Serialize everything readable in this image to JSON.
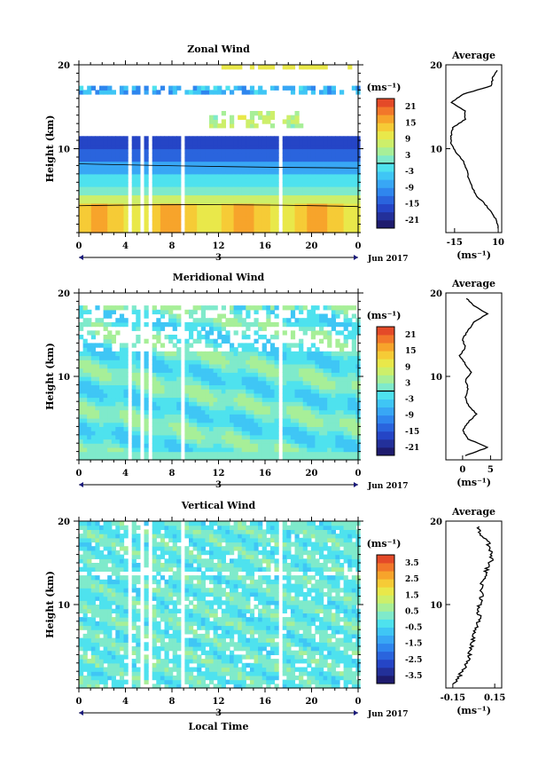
{
  "chart_data": [
    {
      "type": "heatmap",
      "title": "Zonal Wind",
      "ylabel": "Height (km)",
      "ylim": [
        0,
        20
      ],
      "yticks": [
        "20",
        "10"
      ],
      "xlim": [
        0,
        24
      ],
      "xticks": [
        "0",
        "4",
        "8",
        "12",
        "16",
        "20",
        "0"
      ],
      "day_label": "3",
      "month_label": "Jun 2017",
      "colorbar": {
        "unit": "(ms⁻¹)",
        "tick_labels": [
          "21",
          "15",
          "9",
          "3",
          "-3",
          "-9",
          "-15",
          "-21"
        ],
        "tick_values": [
          21,
          15,
          9,
          3,
          -3,
          -9,
          -15,
          -21
        ],
        "range": [
          -24,
          24
        ],
        "zero_line": 0
      },
      "profile": {
        "title": "Average",
        "xlim": [
          -20,
          12
        ],
        "xticks": [
          "-15",
          "10"
        ],
        "xtick_values": [
          -15,
          10
        ],
        "xlabel": "(ms⁻¹)",
        "height": [
          0.5,
          1.5,
          2.5,
          3.5,
          4.5,
          5.5,
          6.5,
          7.5,
          8.5,
          9.5,
          10.5,
          11.5,
          12.5,
          13.5,
          14.5,
          15.5,
          16.5,
          17.5,
          18.5,
          19.5
        ],
        "values": [
          10,
          9,
          6,
          2,
          -3,
          -5,
          -7,
          -8,
          -10,
          -14,
          -17,
          -17,
          -16,
          -9,
          -9,
          -17,
          -10,
          6,
          7,
          10
        ]
      }
    },
    {
      "type": "heatmap",
      "title": "Meridional Wind",
      "ylabel": "Height (km)",
      "ylim": [
        0,
        20
      ],
      "yticks": [
        "20",
        "10"
      ],
      "xlim": [
        0,
        24
      ],
      "xticks": [
        "0",
        "4",
        "8",
        "12",
        "16",
        "20",
        "0"
      ],
      "day_label": "3",
      "month_label": "Jun 2017",
      "colorbar": {
        "unit": "(ms⁻¹)",
        "tick_labels": [
          "21",
          "15",
          "9",
          "3",
          "-3",
          "-9",
          "-15",
          "-21"
        ],
        "tick_values": [
          21,
          15,
          9,
          3,
          -3,
          -9,
          -15,
          -21
        ],
        "range": [
          -24,
          24
        ],
        "zero_line": 0
      },
      "profile": {
        "title": "Average",
        "xlim": [
          -3,
          7
        ],
        "xticks": [
          "0",
          "5"
        ],
        "xtick_values": [
          0,
          5
        ],
        "xlabel": "(ms⁻¹)",
        "height": [
          0.5,
          1.5,
          2.5,
          3.5,
          4.5,
          5.5,
          6.5,
          7.5,
          8.5,
          9.5,
          10.5,
          11.5,
          12.5,
          13.5,
          14.5,
          15.5,
          16.5,
          17.5,
          18.5,
          19.5
        ],
        "values": [
          0.5,
          4.5,
          1,
          0,
          1,
          2.5,
          1,
          0.5,
          1,
          0.5,
          1.5,
          0.5,
          -0.5,
          0.5,
          0,
          1,
          2,
          4.5,
          2,
          0.5
        ]
      }
    },
    {
      "type": "heatmap",
      "title": "Vertical Wind",
      "ylabel": "Height (km)",
      "ylim": [
        0,
        20
      ],
      "yticks": [
        "20",
        "10"
      ],
      "xlim": [
        0,
        24
      ],
      "xticks": [
        "0",
        "4",
        "8",
        "12",
        "16",
        "20",
        "0"
      ],
      "day_label": "3",
      "month_label": "Jun 2017",
      "xlabel": "Local Time",
      "colorbar": {
        "unit": "(ms⁻¹)",
        "tick_labels": [
          "3.5",
          "2.5",
          "1.5",
          "0.5",
          "-0.5",
          "-1.5",
          "-2.5",
          "-3.5"
        ],
        "tick_values": [
          3.5,
          2.5,
          1.5,
          0.5,
          -0.5,
          -1.5,
          -2.5,
          -3.5
        ],
        "range": [
          -4,
          4
        ]
      },
      "profile": {
        "title": "Average",
        "xlim": [
          -0.2,
          0.2
        ],
        "xticks": [
          "-0.15",
          "0.15"
        ],
        "xtick_values": [
          -0.15,
          0.15
        ],
        "xlabel": "(ms⁻¹)",
        "height": [
          0.5,
          1.5,
          2.5,
          3.5,
          4.5,
          5.5,
          6.5,
          7.5,
          8.5,
          9.5,
          10.5,
          11.5,
          12.5,
          13.5,
          14.5,
          15.5,
          16.5,
          17.5,
          18.5,
          19.5
        ],
        "values": [
          -0.14,
          -0.1,
          -0.06,
          -0.04,
          -0.02,
          -0.01,
          0.0,
          0.02,
          0.04,
          0.03,
          0.05,
          0.06,
          0.05,
          0.08,
          0.1,
          0.13,
          0.12,
          0.1,
          0.05,
          0.02
        ]
      }
    }
  ]
}
